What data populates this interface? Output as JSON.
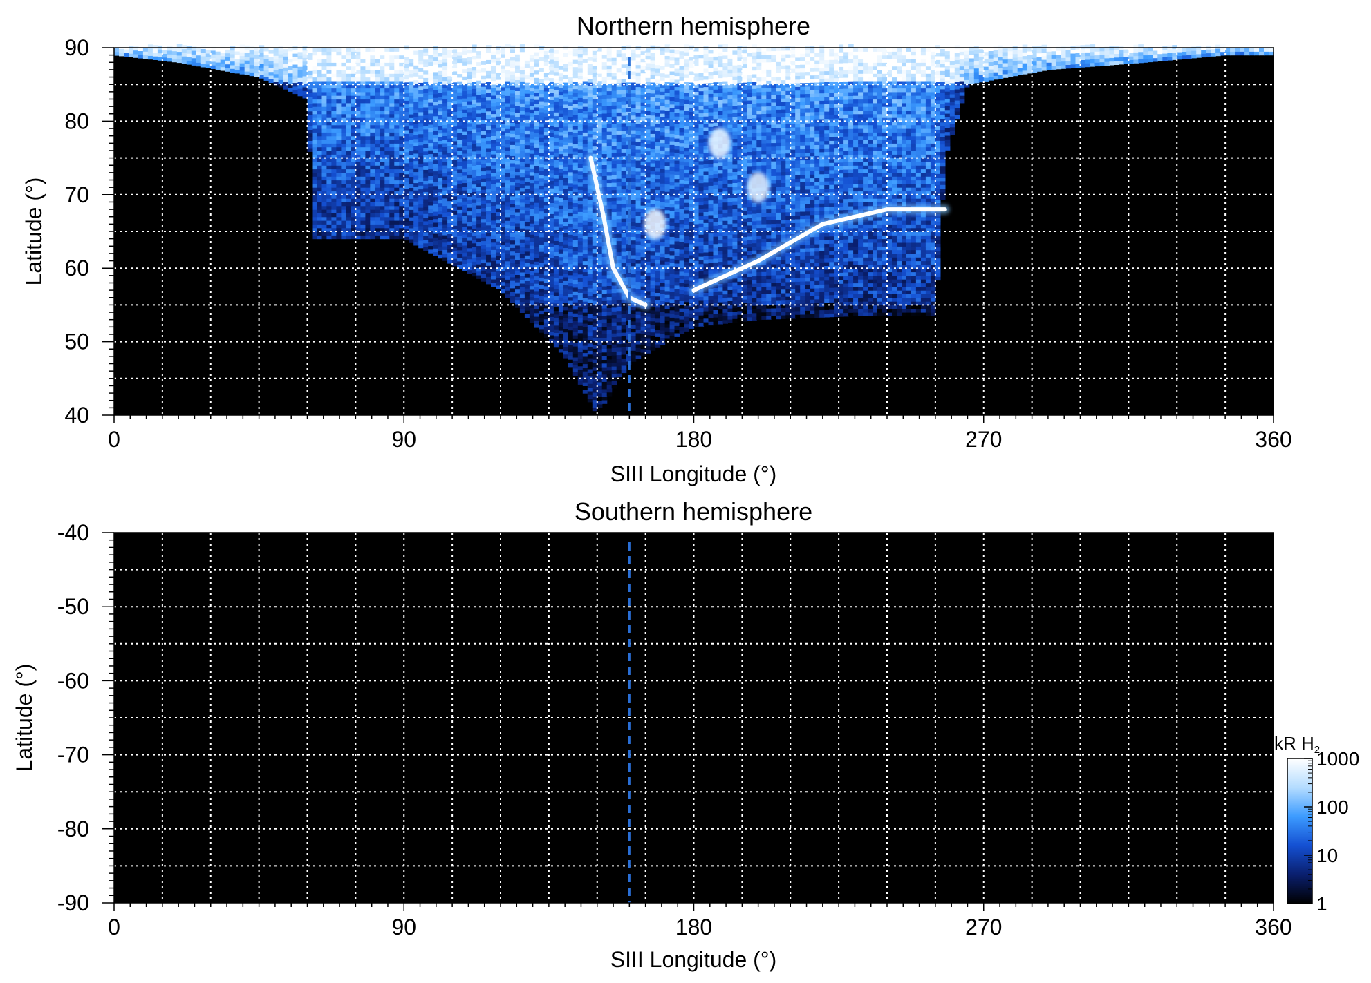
{
  "chart_data": [
    {
      "type": "heatmap",
      "title": "Northern hemisphere",
      "xlabel": "SIII Longitude (°)",
      "ylabel": "Latitude (°)",
      "xlim": [
        0,
        360
      ],
      "ylim": [
        40,
        90
      ],
      "xticks": [
        0,
        90,
        180,
        270,
        360
      ],
      "xtick_labels": [
        "0",
        "90",
        "180",
        "270",
        "360"
      ],
      "yticks": [
        40,
        50,
        60,
        70,
        80,
        90
      ],
      "ytick_labels": [
        "40",
        "50",
        "60",
        "70",
        "80",
        "90"
      ],
      "grid": true,
      "grid_x_step": 15,
      "grid_y_step": 5,
      "reference_longitude": 160,
      "coverage_boundary": {
        "x": [
          0,
          20,
          45,
          60,
          62,
          90,
          120,
          140,
          150,
          160,
          180,
          200,
          230,
          255,
          256,
          258,
          265,
          290,
          320,
          345,
          360
        ],
        "y": [
          89,
          88,
          86,
          83,
          64,
          64,
          57,
          48,
          40,
          47,
          52,
          53,
          53.5,
          53.5,
          60,
          75,
          85,
          87,
          88,
          89,
          89
        ]
      },
      "features": [
        {
          "shape": "arc",
          "x": [
            180,
            200,
            220,
            240,
            258
          ],
          "y": [
            57,
            61,
            66,
            68,
            68
          ],
          "intensity_kR": 1000
        },
        {
          "shape": "arc",
          "x": [
            148,
            152,
            155,
            160,
            165
          ],
          "y": [
            75,
            67,
            60,
            56,
            55
          ],
          "intensity_kR": 900
        },
        {
          "shape": "spot",
          "x": 168,
          "y": 66,
          "intensity_kR": 800
        },
        {
          "shape": "spot",
          "x": 188,
          "y": 77,
          "intensity_kR": 700
        },
        {
          "shape": "spot",
          "x": 200,
          "y": 71,
          "intensity_kR": 600
        }
      ],
      "background_color": "#000000"
    },
    {
      "type": "heatmap",
      "title": "Southern hemisphere",
      "xlabel": "SIII Longitude (°)",
      "ylabel": "Latitude (°)",
      "xlim": [
        0,
        360
      ],
      "ylim": [
        -90,
        -40
      ],
      "xticks": [
        0,
        90,
        180,
        270,
        360
      ],
      "xtick_labels": [
        "0",
        "90",
        "180",
        "270",
        "360"
      ],
      "yticks": [
        -40,
        -50,
        -60,
        -70,
        -80,
        -90
      ],
      "ytick_labels": [
        "-40",
        "-50",
        "-60",
        "-70",
        "-80",
        "-90"
      ],
      "grid": true,
      "grid_x_step": 15,
      "grid_y_step": 5,
      "reference_longitude": 160,
      "background_color": "#000000"
    }
  ],
  "colorbar": {
    "unit_label": "kR H",
    "unit_subscript": "2",
    "scale": "log",
    "range": [
      1,
      1000
    ],
    "ticks": [
      1,
      10,
      100,
      1000
    ],
    "tick_labels": [
      "1",
      "10",
      "100",
      "1000"
    ],
    "colors": [
      "#000000",
      "#0a1f6e",
      "#1450d2",
      "#3c9bff",
      "#b4dcff",
      "#ffffff"
    ]
  },
  "colors": {
    "grid": "#ffffff",
    "reference_line": "#2a6fd6",
    "frame": "#000000"
  }
}
